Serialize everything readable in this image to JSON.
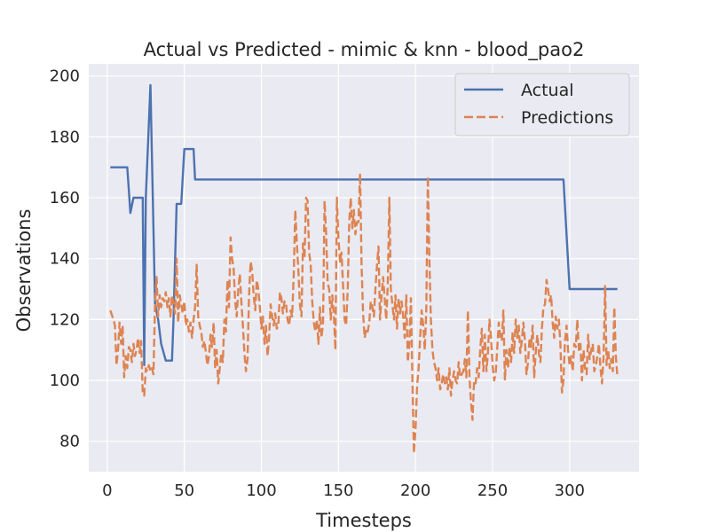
{
  "chart_data": {
    "type": "line",
    "title": "Actual vs Predicted - mimic & knn - blood_pao2",
    "xlabel": "Timesteps",
    "ylabel": "Observations",
    "xlim": [
      -12,
      345
    ],
    "ylim": [
      70,
      204
    ],
    "xticks": [
      0,
      50,
      100,
      150,
      200,
      250,
      300
    ],
    "yticks": [
      80,
      100,
      120,
      140,
      160,
      180,
      200
    ],
    "grid": true,
    "legend_position": "top-right",
    "colors": {
      "background": "#eaeaf2",
      "grid": "#ffffff",
      "actual": "#4c72b0",
      "predictions": "#dd8452",
      "text": "#262626"
    },
    "series": [
      {
        "name": "Actual",
        "style": "solid",
        "x": [
          2,
          13,
          15,
          17,
          20,
          22,
          23,
          24,
          25,
          28,
          30,
          31,
          33,
          35,
          38,
          40,
          42,
          43,
          45,
          47,
          48,
          50,
          52,
          54,
          56,
          57,
          58,
          60,
          62,
          100,
          150,
          200,
          250,
          296,
          300,
          301,
          320,
          331
        ],
        "y": [
          170,
          170,
          155,
          160,
          160,
          160,
          160,
          105,
          160,
          197,
          150,
          125,
          120,
          112,
          106.5,
          106.5,
          106.5,
          120,
          158,
          158,
          158,
          176,
          176,
          176,
          176,
          166,
          166,
          166,
          166,
          166,
          166,
          166,
          166,
          166,
          130,
          130,
          130,
          130
        ]
      },
      {
        "name": "Predictions",
        "style": "dashed",
        "x": [
          2,
          4,
          5,
          6,
          7,
          8,
          9,
          10,
          11,
          12,
          13,
          14,
          15,
          16,
          17,
          18,
          19,
          20,
          21,
          22,
          23,
          24,
          25,
          26,
          27,
          28,
          29,
          30,
          31,
          32,
          33,
          34,
          35,
          36,
          37,
          38,
          39,
          40,
          41,
          42,
          43,
          44,
          45,
          46,
          47,
          48,
          49,
          50,
          51,
          52,
          53,
          54,
          55,
          56,
          57,
          58,
          59,
          60,
          61,
          62,
          63,
          64,
          65,
          66,
          67,
          68,
          69,
          70,
          71,
          72,
          73,
          74,
          75,
          76,
          77,
          78,
          79,
          80,
          81,
          82,
          83,
          84,
          85,
          86,
          87,
          88,
          89,
          90,
          91,
          92,
          93,
          94,
          95,
          96,
          97,
          98,
          99,
          100,
          101,
          102,
          103,
          104,
          105,
          106,
          107,
          108,
          109,
          110,
          111,
          112,
          113,
          114,
          115,
          116,
          117,
          118,
          119,
          120,
          121,
          122,
          123,
          124,
          125,
          126,
          127,
          128,
          129,
          130,
          131,
          132,
          133,
          134,
          135,
          136,
          137,
          138,
          139,
          140,
          141,
          142,
          143,
          144,
          145,
          146,
          147,
          148,
          149,
          150,
          151,
          152,
          153,
          154,
          155,
          156,
          157,
          158,
          159,
          160,
          161,
          162,
          163,
          164,
          165,
          166,
          167,
          168,
          169,
          170,
          171,
          172,
          173,
          174,
          175,
          176,
          177,
          178,
          179,
          180,
          181,
          182,
          183,
          184,
          185,
          186,
          187,
          188,
          189,
          190,
          191,
          192,
          193,
          194,
          195,
          196,
          197,
          198,
          199,
          200,
          201,
          202,
          203,
          204,
          205,
          206,
          207,
          208,
          209,
          210,
          211,
          212,
          213,
          214,
          215,
          216,
          217,
          218,
          219,
          220,
          221,
          222,
          223,
          224,
          225,
          226,
          227,
          228,
          229,
          230,
          231,
          232,
          233,
          234,
          235,
          236,
          237,
          238,
          239,
          240,
          241,
          242,
          243,
          244,
          245,
          246,
          247,
          248,
          249,
          250,
          251,
          252,
          253,
          254,
          255,
          256,
          257,
          258,
          259,
          260,
          261,
          262,
          263,
          264,
          265,
          266,
          267,
          268,
          269,
          270,
          271,
          272,
          273,
          274,
          275,
          276,
          277,
          278,
          279,
          280,
          281,
          282,
          283,
          284,
          285,
          286,
          287,
          288,
          289,
          290,
          291,
          292,
          293,
          294,
          295,
          296,
          297,
          298,
          299,
          300,
          301,
          302,
          303,
          304,
          305,
          306,
          307,
          308,
          309,
          310,
          311,
          312,
          313,
          314,
          315,
          316,
          317,
          318,
          319,
          320,
          321,
          322,
          323,
          324,
          325,
          326,
          327,
          328,
          329,
          330,
          331
        ],
        "y": [
          123,
          120,
          118,
          105,
          110,
          119,
          112,
          118,
          101,
          108,
          104,
          111,
          110,
          106,
          112,
          108,
          110,
          114,
          109,
          113,
          96,
          95,
          104,
          103,
          105,
          103,
          104,
          102,
          125,
          134,
          121,
          128,
          124,
          127,
          126,
          129,
          124,
          127,
          121,
          128,
          125,
          122,
          140,
          119,
          128,
          125,
          122,
          126,
          118,
          120,
          116,
          119,
          114,
          120,
          124,
          138,
          121,
          118,
          116,
          111,
          113,
          109,
          105,
          108,
          115,
          111,
          119,
          104,
          110,
          99,
          104,
          109,
          106,
          120,
          116,
          133,
          124,
          147,
          140,
          137,
          126,
          121,
          130,
          135,
          126,
          118,
          109,
          103,
          107,
          128,
          139,
          136,
          128,
          123,
          133,
          130,
          124,
          117,
          121,
          112,
          118,
          108,
          114,
          125,
          121,
          118,
          122,
          117,
          118,
          129,
          127,
          122,
          126,
          125,
          120,
          118,
          123,
          121,
          135,
          156,
          145,
          136,
          125,
          121,
          145,
          140,
          160,
          159,
          142,
          138,
          126,
          119,
          116,
          120,
          112,
          124,
          114,
          119,
          159,
          148,
          132,
          130,
          120,
          128,
          122,
          110,
          160,
          147,
          139,
          142,
          131,
          120,
          118,
          130,
          152,
          160,
          150,
          156,
          148,
          152,
          152,
          168,
          138,
          122,
          114,
          117,
          116,
          119,
          126,
          124,
          121,
          130,
          138,
          144,
          120,
          128,
          134,
          127,
          120,
          131,
          160,
          130,
          125,
          120,
          128,
          117,
          127,
          122,
          126,
          121,
          114,
          128,
          106,
          112,
          127,
          100,
          76,
          84,
          98,
          104,
          114,
          123,
          118,
          110,
          123,
          167,
          140,
          120,
          110,
          106,
          104,
          100,
          104,
          97,
          99,
          102,
          99,
          101,
          97,
          104,
          95,
          100,
          103,
          100,
          99,
          106,
          101,
          102,
          103,
          107,
          101,
          123,
          101,
          93,
          87,
          100,
          99,
          104,
          101,
          110,
          117,
          103,
          115,
          103,
          109,
          120,
          114,
          105,
          100,
          102,
          110,
          119,
          114,
          113,
          123,
          100,
          110,
          104,
          111,
          106,
          116,
          109,
          120,
          114,
          118,
          109,
          113,
          119,
          113,
          102,
          106,
          114,
          111,
          118,
          101,
          109,
          115,
          109,
          106,
          117,
          124,
          125,
          133,
          130,
          126,
          128,
          119,
          114,
          121,
          117,
          120,
          112,
          96,
          100,
          113,
          118,
          110,
          105,
          108,
          103,
          112,
          111,
          120,
          110,
          112,
          100,
          110,
          104,
          102,
          115,
          107,
          110,
          112,
          103,
          105,
          108,
          112,
          104,
          99,
          108,
          131,
          105,
          110,
          104,
          107,
          103,
          124,
          108,
          101
        ]
      }
    ]
  }
}
